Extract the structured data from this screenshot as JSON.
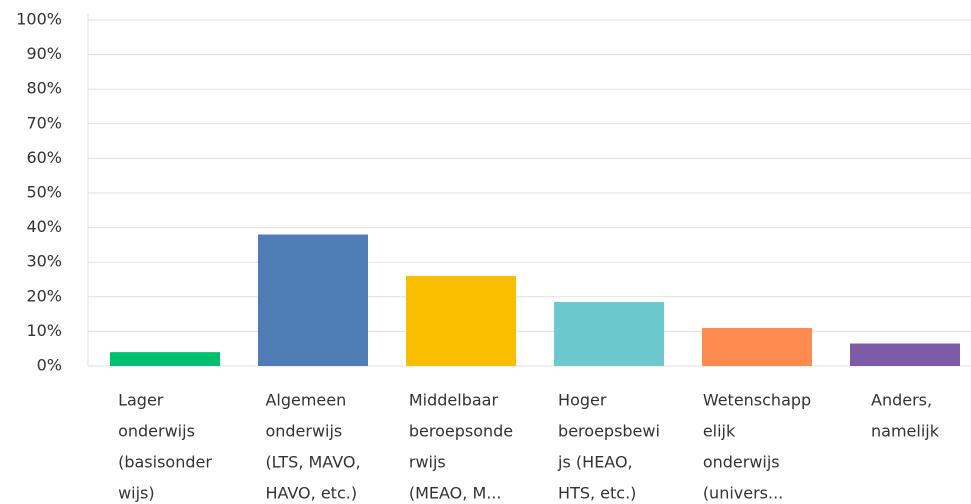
{
  "chart_data": {
    "type": "bar",
    "categories": [
      [
        "Lager",
        "onderwijs",
        "(basisonder",
        "wijs)"
      ],
      [
        "Algemeen",
        "onderwijs",
        "(LTS, MAVO,",
        "HAVO, etc.)"
      ],
      [
        "Middelbaar",
        "beroepsonde",
        "rwijs",
        "(MEAO, M..."
      ],
      [
        "Hoger",
        "beroepsbewi",
        "js (HEAO,",
        "HTS, etc.)"
      ],
      [
        "Wetenschapp",
        "elijk",
        "onderwijs",
        "(univers..."
      ],
      [
        "Anders,",
        "namelijk"
      ]
    ],
    "values": [
      4,
      38,
      26,
      18.5,
      11,
      6.5
    ],
    "colors": [
      "#00bf6f",
      "#507cb6",
      "#f9be00",
      "#6bc8cd",
      "#ff8b4f",
      "#7d5ba6"
    ],
    "ylim": [
      0,
      100
    ],
    "yticks": [
      {
        "value": 0,
        "label": "0%"
      },
      {
        "value": 10,
        "label": "10%"
      },
      {
        "value": 20,
        "label": "20%"
      },
      {
        "value": 30,
        "label": "30%"
      },
      {
        "value": 40,
        "label": "40%"
      },
      {
        "value": 50,
        "label": "50%"
      },
      {
        "value": 60,
        "label": "60%"
      },
      {
        "value": 70,
        "label": "70%"
      },
      {
        "value": 80,
        "label": "80%"
      },
      {
        "value": 90,
        "label": "90%"
      },
      {
        "value": 100,
        "label": "100%"
      }
    ],
    "grid": true
  }
}
